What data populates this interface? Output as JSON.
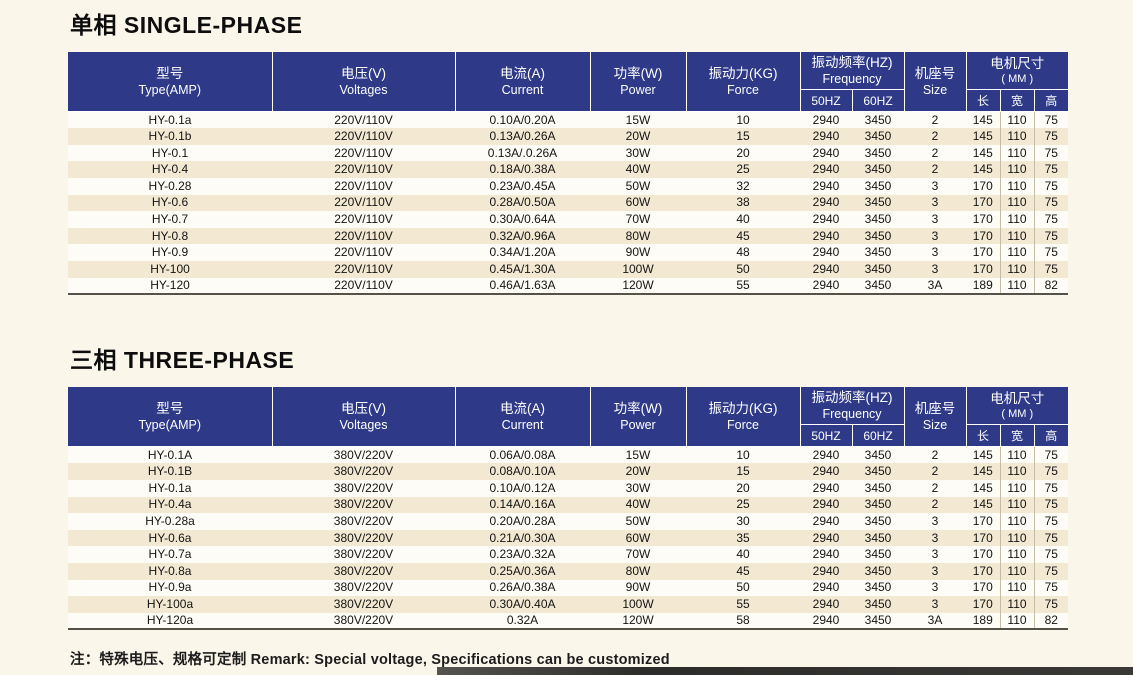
{
  "columns": {
    "type": {
      "cn": "型号",
      "en": "Type(AMP)"
    },
    "voltage": {
      "cn": "电压(V)",
      "en": "Voltages"
    },
    "current": {
      "cn": "电流(A)",
      "en": "Current"
    },
    "power": {
      "cn": "功率(W)",
      "en": "Power"
    },
    "force": {
      "cn": "振动力(KG)",
      "en": "Force"
    },
    "frequency": {
      "cn": "振动频率(HZ)",
      "en": "Frequency",
      "sub": [
        "50HZ",
        "60HZ"
      ]
    },
    "size": {
      "cn": "机座号",
      "en": "Size"
    },
    "dimensions": {
      "cn": "电机尺寸",
      "en": "( MM )",
      "sub": [
        "长",
        "宽",
        "高"
      ]
    }
  },
  "tables": [
    {
      "title": "单相 SINGLE-PHASE",
      "rows": [
        [
          "HY-0.1a",
          "220V/110V",
          "0.10A/0.20A",
          "15W",
          "10",
          "2940",
          "3450",
          "2",
          "145",
          "110",
          "75"
        ],
        [
          "HY-0.1b",
          "220V/110V",
          "0.13A/0.26A",
          "20W",
          "15",
          "2940",
          "3450",
          "2",
          "145",
          "110",
          "75"
        ],
        [
          "HY-0.1",
          "220V/110V",
          "0.13A/.0.26A",
          "30W",
          "20",
          "2940",
          "3450",
          "2",
          "145",
          "110",
          "75"
        ],
        [
          "HY-0.4",
          "220V/110V",
          "0.18A/0.38A",
          "40W",
          "25",
          "2940",
          "3450",
          "2",
          "145",
          "110",
          "75"
        ],
        [
          "HY-0.28",
          "220V/110V",
          "0.23A/0.45A",
          "50W",
          "32",
          "2940",
          "3450",
          "3",
          "170",
          "110",
          "75"
        ],
        [
          "HY-0.6",
          "220V/110V",
          "0.28A/0.50A",
          "60W",
          "38",
          "2940",
          "3450",
          "3",
          "170",
          "110",
          "75"
        ],
        [
          "HY-0.7",
          "220V/110V",
          "0.30A/0.64A",
          "70W",
          "40",
          "2940",
          "3450",
          "3",
          "170",
          "110",
          "75"
        ],
        [
          "HY-0.8",
          "220V/110V",
          "0.32A/0.96A",
          "80W",
          "45",
          "2940",
          "3450",
          "3",
          "170",
          "110",
          "75"
        ],
        [
          "HY-0.9",
          "220V/110V",
          "0.34A/1.20A",
          "90W",
          "48",
          "2940",
          "3450",
          "3",
          "170",
          "110",
          "75"
        ],
        [
          "HY-100",
          "220V/110V",
          "0.45A/1.30A",
          "100W",
          "50",
          "2940",
          "3450",
          "3",
          "170",
          "110",
          "75"
        ],
        [
          "HY-120",
          "220V/110V",
          "0.46A/1.63A",
          "120W",
          "55",
          "2940",
          "3450",
          "3A",
          "189",
          "110",
          "82"
        ]
      ]
    },
    {
      "title": "三相 THREE-PHASE",
      "rows": [
        [
          "HY-0.1A",
          "380V/220V",
          "0.06A/0.08A",
          "15W",
          "10",
          "2940",
          "3450",
          "2",
          "145",
          "110",
          "75"
        ],
        [
          "HY-0.1B",
          "380V/220V",
          "0.08A/0.10A",
          "20W",
          "15",
          "2940",
          "3450",
          "2",
          "145",
          "110",
          "75"
        ],
        [
          "HY-0.1a",
          "380V/220V",
          "0.10A/0.12A",
          "30W",
          "20",
          "2940",
          "3450",
          "2",
          "145",
          "110",
          "75"
        ],
        [
          "HY-0.4a",
          "380V/220V",
          "0.14A/0.16A",
          "40W",
          "25",
          "2940",
          "3450",
          "2",
          "145",
          "110",
          "75"
        ],
        [
          "HY-0.28a",
          "380V/220V",
          "0.20A/0.28A",
          "50W",
          "30",
          "2940",
          "3450",
          "3",
          "170",
          "110",
          "75"
        ],
        [
          "HY-0.6a",
          "380V/220V",
          "0.21A/0.30A",
          "60W",
          "35",
          "2940",
          "3450",
          "3",
          "170",
          "110",
          "75"
        ],
        [
          "HY-0.7a",
          "380V/220V",
          "0.23A/0.32A",
          "70W",
          "40",
          "2940",
          "3450",
          "3",
          "170",
          "110",
          "75"
        ],
        [
          "HY-0.8a",
          "380V/220V",
          "0.25A/0.36A",
          "80W",
          "45",
          "2940",
          "3450",
          "3",
          "170",
          "110",
          "75"
        ],
        [
          "HY-0.9a",
          "380V/220V",
          "0.26A/0.38A",
          "90W",
          "50",
          "2940",
          "3450",
          "3",
          "170",
          "110",
          "75"
        ],
        [
          "HY-100a",
          "380V/220V",
          "0.30A/0.40A",
          "100W",
          "55",
          "2940",
          "3450",
          "3",
          "170",
          "110",
          "75"
        ],
        [
          "HY-120a",
          "380V/220V",
          "0.32A",
          "120W",
          "58",
          "2940",
          "3450",
          "3A",
          "189",
          "110",
          "82"
        ]
      ]
    }
  ],
  "note": "注：特殊电压、规格可定制 Remark: Special voltage, Specifications can be customized",
  "colors": {
    "header_bg": "#2e3a88",
    "row_alt": "#f3e8d2",
    "page_bg": "#fbf6ea"
  }
}
